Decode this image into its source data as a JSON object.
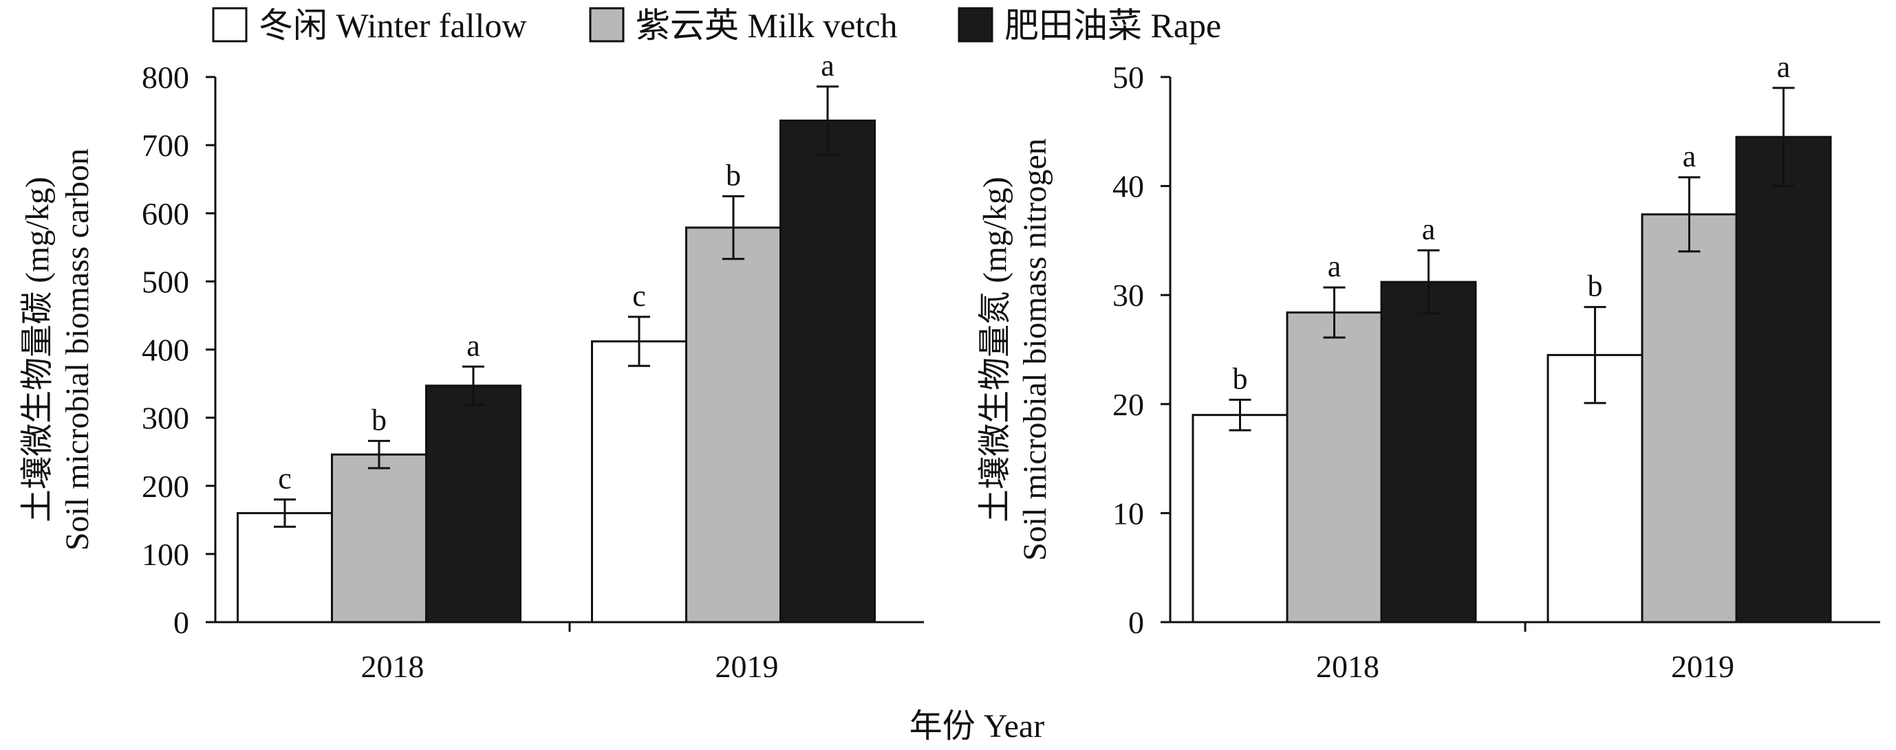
{
  "legend": [
    {
      "label": "冬闲 Winter fallow",
      "color": "#ffffff"
    },
    {
      "label": "紫云英 Milk vetch",
      "color": "#b8b8b8"
    },
    {
      "label": "肥田油菜 Rape",
      "color": "#1a1a1a"
    }
  ],
  "xlabel": "年份 Year",
  "chart_data": [
    {
      "type": "bar",
      "categories": [
        "2018",
        "2019"
      ],
      "ylabel_cn": "土壤微生物量碳 (mg/kg)",
      "ylabel_en": "Soil microbial biomass carbon",
      "ylim": [
        0,
        800
      ],
      "yticks": [
        0,
        100,
        200,
        300,
        400,
        500,
        600,
        700,
        800
      ],
      "series": [
        {
          "name": "冬闲 Winter fallow",
          "values": [
            160,
            412
          ],
          "errors": [
            20,
            36
          ],
          "labels": [
            "c",
            "c"
          ]
        },
        {
          "name": "紫云英 Milk vetch",
          "values": [
            246,
            579
          ],
          "errors": [
            20,
            46
          ],
          "labels": [
            "b",
            "b"
          ]
        },
        {
          "name": "肥田油菜 Rape",
          "values": [
            347,
            736
          ],
          "errors": [
            28,
            50
          ],
          "labels": [
            "a",
            "a"
          ]
        }
      ]
    },
    {
      "type": "bar",
      "categories": [
        "2018",
        "2019"
      ],
      "ylabel_cn": "土壤微生物量氮 (mg/kg)",
      "ylabel_en": "Soil microbial biomass nitrogen",
      "ylim": [
        0,
        50
      ],
      "yticks": [
        0,
        10,
        20,
        30,
        40,
        50
      ],
      "series": [
        {
          "name": "冬闲 Winter fallow",
          "values": [
            19.0,
            24.5
          ],
          "errors": [
            1.4,
            4.4
          ],
          "labels": [
            "b",
            "b"
          ]
        },
        {
          "name": "紫云英 Milk vetch",
          "values": [
            28.4,
            37.4
          ],
          "errors": [
            2.3,
            3.4
          ],
          "labels": [
            "a",
            "a"
          ]
        },
        {
          "name": "肥田油菜 Rape",
          "values": [
            31.2,
            44.5
          ],
          "errors": [
            2.9,
            4.5
          ],
          "labels": [
            "a",
            "a"
          ]
        }
      ]
    }
  ]
}
